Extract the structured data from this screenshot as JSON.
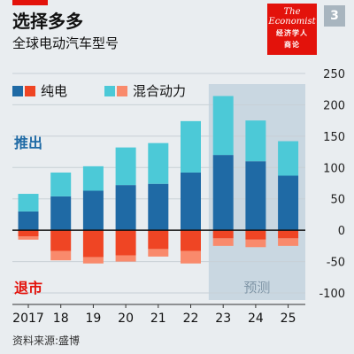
{
  "header": {
    "title": "选择多多",
    "subtitle": "全球电动汽车型号",
    "badge": "3"
  },
  "logo": {
    "line1": "The",
    "line2": "Economist",
    "line3": "经济学人",
    "line4": "商论"
  },
  "legend": {
    "pure_label": "纯电",
    "hybrid_label": "混合动力"
  },
  "labels": {
    "launch": "推出",
    "exit": "退市",
    "forecast": "预测"
  },
  "source": "资料来源:盛博",
  "colors": {
    "pure_launch": "#1f6aa5",
    "hybrid_launch": "#4cc9d7",
    "pure_exit": "#ef4524",
    "hybrid_exit": "#f98a6c",
    "launch_text": "#1f6aa5",
    "exit_text": "#e3120b",
    "forecast_band": "#c9d7e1",
    "forecast_text": "#7f95a6"
  },
  "chart_data": {
    "type": "bar",
    "categories": [
      "2017",
      "18",
      "19",
      "20",
      "21",
      "22",
      "23",
      "24",
      "25"
    ],
    "series": [
      {
        "name": "纯电",
        "values": [
          30,
          54,
          63,
          72,
          74,
          92,
          120,
          110,
          87
        ]
      },
      {
        "name": "混合动力",
        "values": [
          28,
          38,
          39,
          60,
          65,
          82,
          94,
          65,
          55
        ]
      },
      {
        "name": "纯电",
        "values": [
          -10,
          -33,
          -43,
          -40,
          -30,
          -33,
          -13,
          -15,
          -13
        ]
      },
      {
        "name": "混合动力",
        "values": [
          -5,
          -15,
          -10,
          -10,
          -12,
          -20,
          -12,
          -12,
          -12
        ]
      }
    ],
    "stacked": true,
    "ylim": [
      -100,
      250
    ],
    "yticks": [
      250,
      200,
      150,
      100,
      50,
      0,
      -50,
      -100
    ],
    "forecast_from": "23",
    "grid": true
  }
}
